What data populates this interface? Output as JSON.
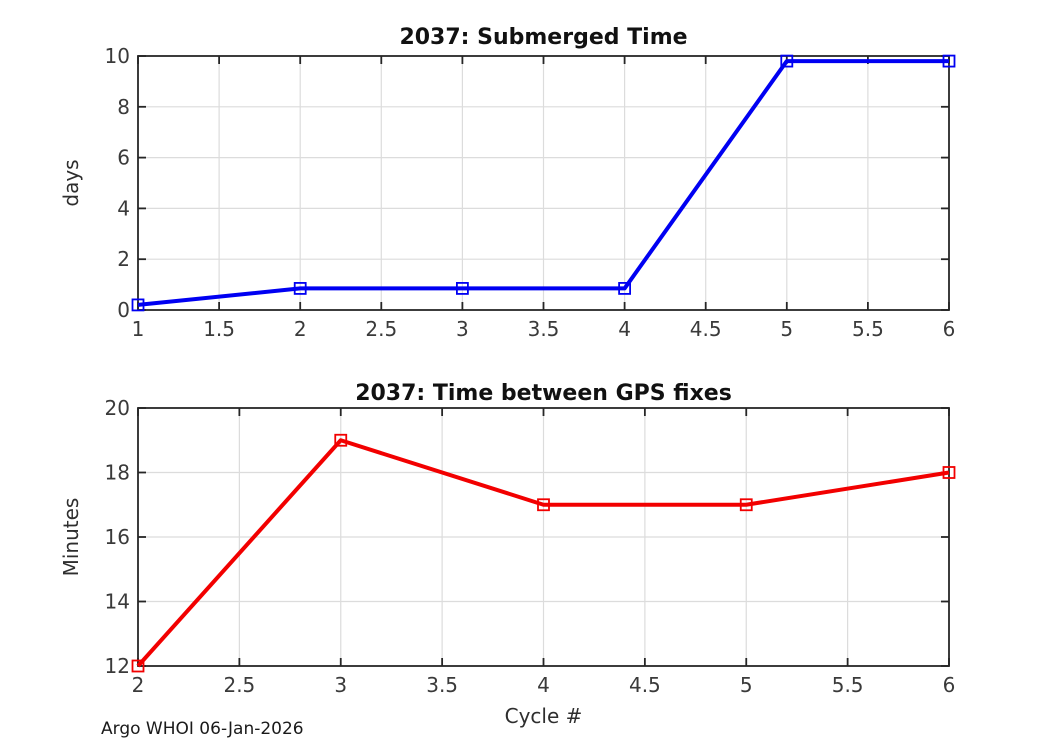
{
  "figure": {
    "background": "#ffffff",
    "footer_credit": "Argo WHOI 06-Jan-2026"
  },
  "colors": {
    "axis_frame": "#262626",
    "grid": "#dcdcdc",
    "tick_text": "#3a3a3a",
    "title_text": "#111111",
    "blue_series": "#0000f2",
    "red_series": "#f20000"
  },
  "chart_data": [
    {
      "type": "line",
      "title": "2037: Submerged Time",
      "xlabel": "",
      "ylabel": "days",
      "x": [
        1,
        2,
        3,
        4,
        5,
        6
      ],
      "values": [
        0.2,
        0.85,
        0.85,
        0.85,
        9.8,
        9.8
      ],
      "xlim": [
        1,
        6
      ],
      "ylim": [
        0,
        10
      ],
      "xticks": [
        1,
        1.5,
        2,
        2.5,
        3,
        3.5,
        4,
        4.5,
        5,
        5.5,
        6
      ],
      "yticks": [
        0,
        2,
        4,
        6,
        8,
        10
      ],
      "series_color": "#0000f2",
      "marker": "open-square",
      "grid": true,
      "legend": "none"
    },
    {
      "type": "line",
      "title": "2037: Time between GPS fixes",
      "xlabel": "Cycle #",
      "ylabel": "Minutes",
      "x": [
        2,
        3,
        4,
        5,
        6
      ],
      "values": [
        12,
        19,
        17,
        17,
        18
      ],
      "xlim": [
        2,
        6
      ],
      "ylim": [
        12,
        20
      ],
      "xticks": [
        2,
        2.5,
        3,
        3.5,
        4,
        4.5,
        5,
        5.5,
        6
      ],
      "yticks": [
        12,
        14,
        16,
        18,
        20
      ],
      "series_color": "#f20000",
      "marker": "open-square",
      "grid": true,
      "legend": "none"
    }
  ]
}
